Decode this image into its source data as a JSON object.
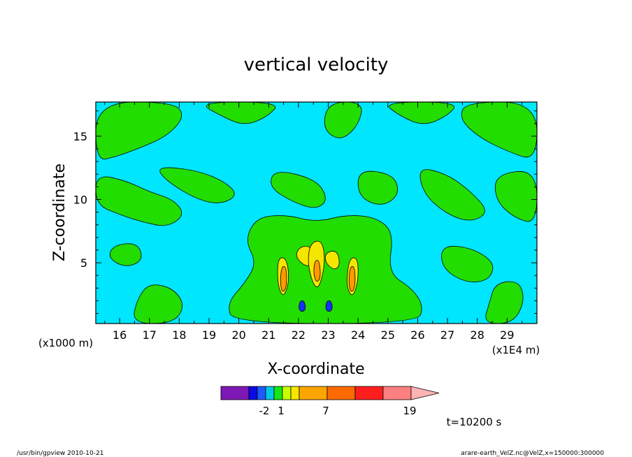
{
  "chart_data": {
    "type": "contour",
    "title": "vertical velocity",
    "xlabel": "X-coordinate",
    "ylabel": "Z-coordinate",
    "x_unit": "(x1E4 m)",
    "y_unit": "(x1000 m)",
    "xlim": [
      15.2,
      30.0
    ],
    "ylim": [
      0.2,
      17.7
    ],
    "xticks": [
      16,
      17,
      18,
      19,
      20,
      21,
      22,
      23,
      24,
      25,
      26,
      27,
      28,
      29
    ],
    "yticks": [
      5,
      10,
      15
    ],
    "time_label": "t=10200 s",
    "colorbar": {
      "tick_labels": [
        "-2",
        "1",
        "7",
        "19"
      ],
      "colors": [
        "#7d18b4",
        "#0a0ae6",
        "#1e5aff",
        "#00c8e6",
        "#14e614",
        "#c8ff00",
        "#f5e600",
        "#ffa500",
        "#ff6a00",
        "#ff1e1e",
        "#ff8080",
        "#ffb4b4"
      ],
      "weights": [
        1,
        0.3,
        0.3,
        0.3,
        0.3,
        0.3,
        0.3,
        1,
        1,
        1,
        1,
        1
      ]
    },
    "regions": {
      "background_color": "#00e6ff",
      "green_color": "#22dd00",
      "yellow_color": "#f5e600",
      "orange_color": "#ff9a00",
      "blue_color": "#1430ff",
      "green_blobs": [
        [
          [
            15.2,
            17.7
          ],
          [
            17.8,
            17.7
          ],
          [
            18.2,
            16.6
          ],
          [
            17.6,
            15.0
          ],
          [
            16.6,
            14.0
          ],
          [
            15.9,
            13.4
          ],
          [
            15.2,
            13.0
          ]
        ],
        [
          [
            15.2,
            12.0
          ],
          [
            16.2,
            11.5
          ],
          [
            17.0,
            10.6
          ],
          [
            17.8,
            10.0
          ],
          [
            18.2,
            8.8
          ],
          [
            17.6,
            7.8
          ],
          [
            16.8,
            8.2
          ],
          [
            16.0,
            8.8
          ],
          [
            15.2,
            9.6
          ]
        ],
        [
          [
            17.2,
            12.6
          ],
          [
            18.4,
            12.4
          ],
          [
            19.4,
            11.6
          ],
          [
            20.0,
            10.4
          ],
          [
            19.4,
            9.6
          ],
          [
            18.6,
            10.0
          ],
          [
            17.6,
            11.4
          ]
        ],
        [
          [
            18.6,
            17.7
          ],
          [
            21.4,
            17.7
          ],
          [
            21.0,
            16.6
          ],
          [
            20.2,
            15.8
          ],
          [
            19.4,
            16.6
          ]
        ],
        [
          [
            20.6,
            8.6
          ],
          [
            21.6,
            8.8
          ],
          [
            22.6,
            8.2
          ],
          [
            23.6,
            8.8
          ],
          [
            24.6,
            8.6
          ],
          [
            25.2,
            7.4
          ],
          [
            25.0,
            4.2
          ],
          [
            25.8,
            3.0
          ],
          [
            26.2,
            1.6
          ],
          [
            26.0,
            0.2
          ],
          [
            19.8,
            0.2
          ],
          [
            19.6,
            1.8
          ],
          [
            20.2,
            3.4
          ],
          [
            20.6,
            5.0
          ],
          [
            20.2,
            6.8
          ]
        ],
        [
          [
            21.2,
            12.4
          ],
          [
            22.6,
            11.6
          ],
          [
            23.0,
            10.0
          ],
          [
            22.6,
            9.2
          ],
          [
            21.8,
            9.8
          ],
          [
            21.0,
            11.0
          ]
        ],
        [
          [
            23.0,
            17.7
          ],
          [
            24.2,
            17.7
          ],
          [
            24.0,
            15.8
          ],
          [
            23.4,
            14.6
          ],
          [
            22.8,
            15.6
          ]
        ],
        [
          [
            24.0,
            12.4
          ],
          [
            25.2,
            12.0
          ],
          [
            25.4,
            10.4
          ],
          [
            24.8,
            9.4
          ],
          [
            24.0,
            10.2
          ]
        ],
        [
          [
            24.8,
            17.7
          ],
          [
            27.4,
            17.7
          ],
          [
            27.0,
            16.6
          ],
          [
            26.2,
            15.8
          ],
          [
            25.4,
            16.6
          ]
        ],
        [
          [
            26.0,
            12.6
          ],
          [
            27.0,
            12.0
          ],
          [
            27.8,
            10.6
          ],
          [
            28.4,
            9.0
          ],
          [
            27.8,
            8.2
          ],
          [
            27.0,
            8.8
          ],
          [
            26.2,
            10.4
          ]
        ],
        [
          [
            27.6,
            17.7
          ],
          [
            30.0,
            17.7
          ],
          [
            30.0,
            13.0
          ],
          [
            29.0,
            13.8
          ],
          [
            28.0,
            15.0
          ],
          [
            27.4,
            16.4
          ]
        ],
        [
          [
            26.8,
            6.4
          ],
          [
            27.8,
            6.2
          ],
          [
            28.6,
            5.0
          ],
          [
            28.4,
            3.6
          ],
          [
            27.6,
            3.4
          ],
          [
            26.8,
            4.6
          ]
        ],
        [
          [
            28.6,
            12.0
          ],
          [
            30.0,
            12.4
          ],
          [
            30.0,
            8.0
          ],
          [
            29.2,
            8.6
          ],
          [
            28.6,
            10.0
          ]
        ],
        [
          [
            15.8,
            6.4
          ],
          [
            16.6,
            6.6
          ],
          [
            16.8,
            5.2
          ],
          [
            16.2,
            4.6
          ],
          [
            15.6,
            5.4
          ]
        ],
        [
          [
            17.0,
            3.4
          ],
          [
            17.8,
            3.0
          ],
          [
            18.2,
            1.6
          ],
          [
            17.8,
            0.2
          ],
          [
            16.4,
            0.2
          ],
          [
            16.6,
            2.2
          ]
        ],
        [
          [
            28.6,
            3.4
          ],
          [
            29.4,
            3.6
          ],
          [
            29.6,
            2.0
          ],
          [
            29.2,
            0.2
          ],
          [
            28.2,
            0.2
          ],
          [
            28.4,
            1.8
          ]
        ]
      ],
      "yellow_blobs": [
        [
          [
            22.0,
            6.2
          ],
          [
            22.4,
            6.4
          ],
          [
            22.5,
            5.2
          ],
          [
            22.3,
            4.6
          ],
          [
            21.9,
            5.4
          ]
        ],
        [
          [
            22.4,
            6.6
          ],
          [
            22.8,
            6.8
          ],
          [
            22.9,
            5.0
          ],
          [
            22.7,
            3.0
          ],
          [
            22.5,
            3.2
          ],
          [
            22.3,
            5.0
          ]
        ],
        [
          [
            22.9,
            5.8
          ],
          [
            23.3,
            6.0
          ],
          [
            23.4,
            4.8
          ],
          [
            23.2,
            4.4
          ],
          [
            22.9,
            5.0
          ]
        ],
        [
          [
            21.3,
            5.4
          ],
          [
            21.6,
            5.4
          ],
          [
            21.7,
            3.6
          ],
          [
            21.5,
            2.2
          ],
          [
            21.3,
            3.2
          ]
        ],
        [
          [
            23.7,
            5.4
          ],
          [
            24.0,
            5.4
          ],
          [
            24.0,
            3.4
          ],
          [
            23.8,
            2.2
          ],
          [
            23.6,
            3.2
          ]
        ]
      ],
      "orange_blobs": [
        [
          [
            21.45,
            4.8
          ],
          [
            21.6,
            4.6
          ],
          [
            21.6,
            3.0
          ],
          [
            21.45,
            2.6
          ],
          [
            21.38,
            3.6
          ]
        ],
        [
          [
            23.75,
            4.8
          ],
          [
            23.9,
            4.6
          ],
          [
            23.9,
            3.0
          ],
          [
            23.75,
            2.6
          ],
          [
            23.68,
            3.6
          ]
        ],
        [
          [
            22.55,
            5.2
          ],
          [
            22.7,
            5.2
          ],
          [
            22.75,
            3.8
          ],
          [
            22.6,
            3.4
          ],
          [
            22.5,
            4.2
          ]
        ]
      ],
      "blue_blobs": [
        [
          [
            22.05,
            2.0
          ],
          [
            22.2,
            2.0
          ],
          [
            22.25,
            1.3
          ],
          [
            22.1,
            1.1
          ],
          [
            22.0,
            1.4
          ]
        ],
        [
          [
            22.95,
            2.0
          ],
          [
            23.1,
            2.0
          ],
          [
            23.15,
            1.3
          ],
          [
            23.0,
            1.1
          ],
          [
            22.9,
            1.4
          ]
        ]
      ]
    }
  },
  "footer": {
    "left": "/usr/bin/gpview   2010-10-21",
    "right": "arare-earth_VelZ.nc@VelZ,x=150000:300000"
  }
}
